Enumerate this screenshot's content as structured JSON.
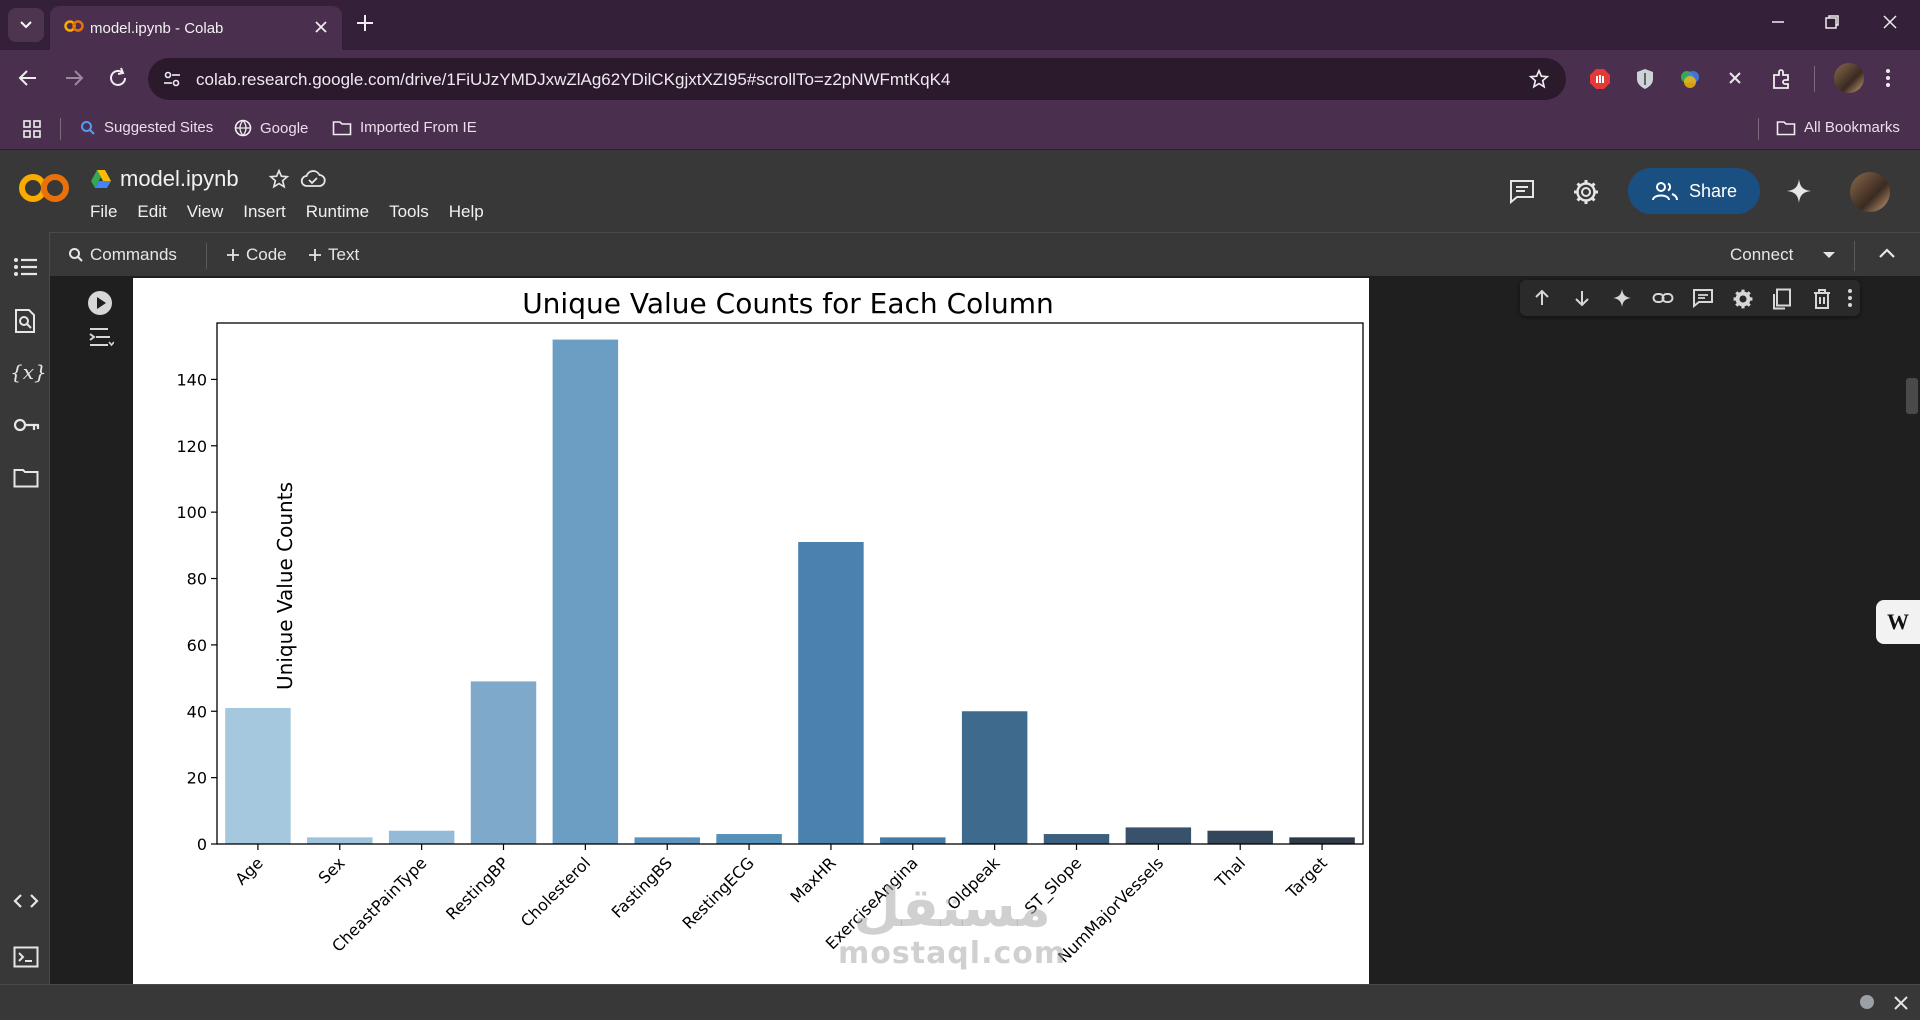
{
  "browser": {
    "tab_title": "model.ipynb - Colab",
    "url": "colab.research.google.com/drive/1FiUJzYMDJxwZlAg62YDilCKgjxtXZI95#scrollTo=z2pNWFmtKqK4",
    "bookmarks": [
      "Suggested Sites",
      "Google",
      "Imported From IE"
    ],
    "all_bookmarks": "All Bookmarks",
    "accent": "#4b2f4e"
  },
  "colab": {
    "notebook_title": "model.ipynb",
    "menu": [
      "File",
      "Edit",
      "View",
      "Insert",
      "Runtime",
      "Tools",
      "Help"
    ],
    "share_label": "Share",
    "toolbar": {
      "commands": "Commands",
      "add_code": "Code",
      "add_text": "Text",
      "connect": "Connect"
    }
  },
  "watermark": {
    "arabic": "مستقل",
    "latin": "mostaql.com"
  },
  "chart_data": {
    "type": "bar",
    "title": "Unique Value Counts for Each Column",
    "xlabel": "",
    "ylabel": "Unique Value Counts",
    "ylim": [
      0,
      157
    ],
    "yticks": [
      0,
      20,
      40,
      60,
      80,
      100,
      120,
      140
    ],
    "categories": [
      "Age",
      "Sex",
      "CheastPainType",
      "RestingBP",
      "Cholesterol",
      "FastingBS",
      "RestingECG",
      "MaxHR",
      "ExerciseAngina",
      "Oldpeak",
      "ST_Slope",
      "NumMajorVessels",
      "Thal",
      "Target"
    ],
    "values": [
      41,
      2,
      4,
      49,
      152,
      2,
      3,
      91,
      2,
      40,
      3,
      5,
      4,
      2
    ],
    "colors": [
      "#a6c8de",
      "#9fc3db",
      "#93bad6",
      "#7ea9cb",
      "#6c9dc2",
      "#5b93bd",
      "#5590b8",
      "#4a82ae",
      "#447aa3",
      "#3e6a8e",
      "#3b5f7c",
      "#37526a",
      "#34475a",
      "#2f3a46"
    ],
    "grid": false
  }
}
